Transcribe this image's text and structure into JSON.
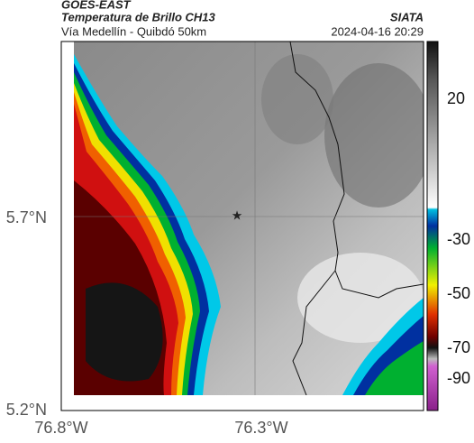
{
  "header": {
    "title": "GOES-EAST",
    "subtitle": "Temperatura de Brillo CH13",
    "route": "Vía Medellín - Quibdó 50km",
    "source": "SIATA",
    "datetime": "2024-04-16 20:29"
  },
  "axes": {
    "yticks": [
      "5.7°N",
      "5.2°N"
    ],
    "xticks": [
      "76.8°W",
      "76.3°W"
    ]
  },
  "colorbar": {
    "ticks": [
      "20",
      "-30",
      "-50",
      "-70",
      "-90"
    ]
  }
}
